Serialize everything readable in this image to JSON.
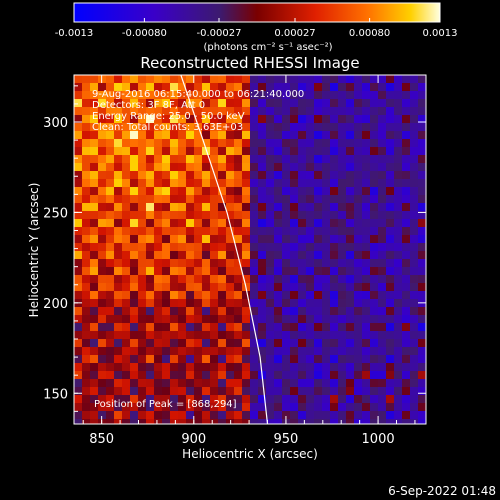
{
  "chart_data": {
    "type": "heatmap",
    "title": "Reconstructed RHESSI Image",
    "xlabel": "Heliocentric X (arcsec)",
    "ylabel": "Heliocentric Y (arcsec)",
    "xlim": [
      835,
      1026
    ],
    "ylim": [
      133,
      326
    ],
    "x_ticks": [
      850,
      900,
      950,
      1000
    ],
    "y_ticks": [
      150,
      200,
      250,
      300
    ],
    "colorbar": {
      "ticks": [
        "-0.0013",
        "-0.00080",
        "-0.00027",
        "0.00027",
        "0.00080",
        "0.0013"
      ],
      "tick_values": [
        -0.0013,
        -0.0008,
        -0.00027,
        0.00027,
        0.0008,
        0.0013
      ],
      "range": [
        -0.0013,
        0.0013
      ],
      "units": "(photons cm⁻² s⁻¹ asec⁻²)"
    },
    "annotations": [
      "9-Aug-2016 06:15:40.000 to 06:21:40.000",
      "Detectors: 3F 8F, Att 0",
      "Energy Range: 25.0 - 50.0 keV",
      "Clean: Total counts: 3.63E+03"
    ],
    "peak_label": "Position of Peak = [868,294]",
    "peak": [
      868,
      294
    ],
    "limb_curve": [
      [
        893,
        326
      ],
      [
        905,
        290
      ],
      [
        918,
        250
      ],
      [
        928,
        210
      ],
      [
        936,
        170
      ],
      [
        940,
        133
      ]
    ]
  },
  "timestamp": "6-Sep-2022 01:48"
}
